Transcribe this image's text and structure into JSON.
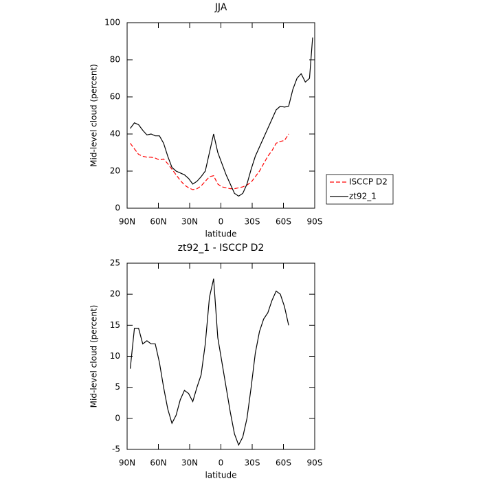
{
  "chart_data": [
    {
      "type": "line",
      "title": "JJA",
      "xlabel": "latitude",
      "ylabel": "Mid-level cloud (percent)",
      "x": [
        87,
        83,
        79,
        75,
        71,
        67,
        63,
        59,
        55,
        51,
        47,
        43,
        39,
        35,
        31,
        27,
        23,
        19,
        15,
        11,
        7,
        3,
        -1,
        -5,
        -9,
        -13,
        -17,
        -21,
        -25,
        -29,
        -33,
        -37,
        -41,
        -45,
        -49,
        -53,
        -57,
        -61,
        -65,
        -69,
        -73,
        -77,
        -81,
        -85,
        -88
      ],
      "series": [
        {
          "name": "ISCCP D2",
          "color": "#ff0000",
          "dashed": true,
          "values": [
            35,
            32,
            29,
            28,
            27.5,
            27.5,
            27,
            26,
            26.5,
            24,
            21,
            18,
            15,
            12.5,
            11,
            10,
            10.5,
            12,
            14.5,
            17,
            17.5,
            13,
            11.5,
            11,
            10.5,
            10.5,
            11,
            11.5,
            12.5,
            14,
            17,
            20,
            24,
            28,
            31,
            35,
            36,
            36.5,
            40,
            null,
            null,
            null,
            null,
            null,
            null
          ]
        },
        {
          "name": "zt92_1",
          "color": "#000000",
          "dashed": false,
          "values": [
            43,
            46,
            45,
            42,
            39.5,
            40,
            39,
            39,
            35,
            28,
            22,
            20,
            19,
            18,
            16,
            13,
            14.5,
            17,
            20,
            30,
            40,
            30,
            24,
            18,
            13,
            8,
            6.5,
            8,
            13,
            21,
            28,
            33,
            38,
            43,
            48,
            53,
            55,
            54.5,
            55,
            64,
            70,
            72.5,
            68,
            70,
            92
          ]
        }
      ],
      "xlim": [
        90,
        -90
      ],
      "xticks": [
        {
          "value": 90,
          "label": "90N"
        },
        {
          "value": 60,
          "label": "60N"
        },
        {
          "value": 30,
          "label": "30N"
        },
        0,
        {
          "value": -30,
          "label": "30S"
        },
        {
          "value": -60,
          "label": "60S"
        },
        {
          "value": -90,
          "label": "90S"
        }
      ],
      "ylim": [
        0,
        100
      ],
      "yticks": [
        0,
        20,
        40,
        60,
        80,
        100
      ],
      "legend": "right"
    },
    {
      "type": "line",
      "title": "zt92_1 - ISCCP D2",
      "xlabel": "latitude",
      "ylabel": "Mid-level cloud (percent)",
      "x": [
        87,
        83,
        79,
        75,
        71,
        67,
        63,
        59,
        55,
        51,
        47,
        43,
        39,
        35,
        31,
        27,
        23,
        19,
        15,
        11,
        7,
        3,
        -1,
        -5,
        -9,
        -13,
        -17,
        -21,
        -25,
        -29,
        -33,
        -37,
        -41,
        -45,
        -49,
        -53,
        -57,
        -61,
        -65,
        -69,
        -73,
        -77,
        -81,
        -85,
        -88
      ],
      "series": [
        {
          "color": "#000000",
          "dashed": false,
          "values": [
            8,
            14.5,
            14.5,
            12,
            12.5,
            12,
            12,
            9,
            5,
            1.5,
            -0.8,
            0.5,
            3,
            4.5,
            4,
            2.7,
            5,
            7,
            12,
            19.5,
            22.5,
            13,
            9,
            5,
            1,
            -2.5,
            -4.3,
            -3,
            0,
            5,
            10.5,
            14,
            16,
            17,
            19,
            20.5,
            20,
            18,
            15,
            null,
            null,
            null,
            null,
            null,
            null
          ]
        }
      ],
      "xlim": [
        90,
        -90
      ],
      "xticks": [
        {
          "value": 90,
          "label": "90N"
        },
        {
          "value": 60,
          "label": "60N"
        },
        {
          "value": 30,
          "label": "30N"
        },
        0,
        {
          "value": -30,
          "label": "30S"
        },
        {
          "value": -60,
          "label": "60S"
        },
        {
          "value": -90,
          "label": "90S"
        }
      ],
      "ylim": [
        -5,
        25
      ],
      "yticks": [
        -5,
        0,
        5,
        10,
        15,
        20,
        25
      ]
    }
  ]
}
